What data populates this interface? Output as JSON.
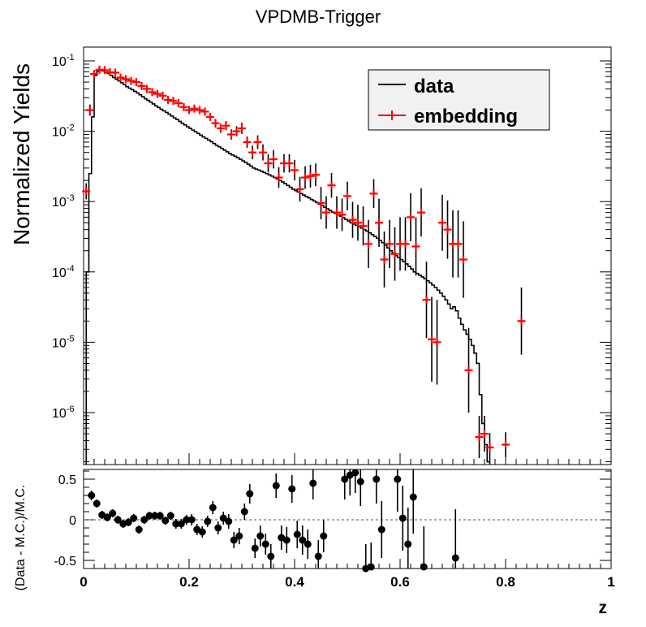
{
  "chart_data": [
    {
      "type": "line",
      "panel": "top",
      "title": "VPDMB-Trigger",
      "ylabel": "Normalized Yields",
      "xlabel": "",
      "xlim": [
        0,
        1
      ],
      "yscale": "log",
      "ylim": [
        2.5e-07,
        0.15
      ],
      "y_ticks": [
        1e-06,
        1e-05,
        0.0001,
        0.001,
        0.01,
        0.1
      ],
      "y_tick_labels": [
        {
          "base": "10",
          "exp": "-6"
        },
        {
          "base": "10",
          "exp": "-5"
        },
        {
          "base": "10",
          "exp": "-4"
        },
        {
          "base": "10",
          "exp": "-3"
        },
        {
          "base": "10",
          "exp": "-2"
        },
        {
          "base": "10",
          "exp": "-1"
        }
      ],
      "legend_position": "top-right",
      "series": [
        {
          "name": "data",
          "style": "step",
          "color": "#000000",
          "bin_width": 0.005,
          "x_start": 0.005,
          "values": [
            0.0001,
            0.0025,
            0.016,
            0.062,
            0.071,
            0.073,
            0.072,
            0.069,
            0.066,
            0.062,
            0.058,
            0.055,
            0.052,
            0.049,
            0.046,
            0.043,
            0.041,
            0.039,
            0.037,
            0.035,
            0.033,
            0.031,
            0.029,
            0.0275,
            0.026,
            0.0245,
            0.023,
            0.0218,
            0.0205,
            0.0195,
            0.0185,
            0.0175,
            0.0165,
            0.0155,
            0.0147,
            0.0138,
            0.013,
            0.0123,
            0.0116,
            0.011,
            0.0104,
            0.0098,
            0.0093,
            0.0088,
            0.0083,
            0.0079,
            0.0075,
            0.0071,
            0.0067,
            0.0063,
            0.006,
            0.0057,
            0.0054,
            0.0051,
            0.0048,
            0.0046,
            0.0044,
            0.0042,
            0.004,
            0.0038,
            0.0036,
            0.0034,
            0.0032,
            0.003,
            0.0029,
            0.0028,
            0.0027,
            0.0026,
            0.0025,
            0.0024,
            0.0023,
            0.0022,
            0.0021,
            0.002,
            0.0019,
            0.0018,
            0.0017,
            0.0016,
            0.0015,
            0.00143,
            0.00137,
            0.0013,
            0.00124,
            0.00118,
            0.00113,
            0.00107,
            0.00102,
            0.00097,
            0.00092,
            0.00088,
            0.00083,
            0.00079,
            0.00075,
            0.00071,
            0.00068,
            0.00065,
            0.00062,
            0.00059,
            0.00056,
            0.00053,
            0.0005,
            0.00048,
            0.00046,
            0.00044,
            0.00042,
            0.0004,
            0.00038,
            0.00036,
            0.00034,
            0.00032,
            0.0003,
            0.00028,
            0.00026,
            0.00024,
            0.00022,
            0.0002,
            0.000185,
            0.00017,
            0.00016,
            0.00015,
            0.00014,
            0.00013,
            0.00012,
            0.00011,
            0.0001,
            9.5e-05,
            9e-05,
            8.5e-05,
            8e-05,
            7.5e-05,
            7e-05,
            6.5e-05,
            6e-05,
            5.5e-05,
            5e-05,
            4.5e-05,
            4e-05,
            3.5e-05,
            3e-05,
            3.2e-05,
            2.8e-05,
            2.2e-05,
            1.8e-05,
            1.5e-05,
            1.3e-05,
            1.1e-05,
            9e-06,
            7e-06,
            5e-06,
            1.8e-06,
            7e-07,
            3.5e-07,
            2e-07
          ]
        },
        {
          "name": "embedding",
          "style": "markers-errors",
          "color": "#ff0000",
          "x": [
            0.005,
            0.012,
            0.02,
            0.03,
            0.04,
            0.05,
            0.06,
            0.07,
            0.08,
            0.09,
            0.1,
            0.11,
            0.12,
            0.13,
            0.14,
            0.15,
            0.16,
            0.17,
            0.18,
            0.19,
            0.2,
            0.21,
            0.22,
            0.23,
            0.24,
            0.25,
            0.26,
            0.27,
            0.28,
            0.29,
            0.3,
            0.31,
            0.32,
            0.33,
            0.34,
            0.35,
            0.36,
            0.37,
            0.38,
            0.39,
            0.4,
            0.41,
            0.42,
            0.43,
            0.44,
            0.45,
            0.46,
            0.47,
            0.48,
            0.49,
            0.5,
            0.51,
            0.52,
            0.53,
            0.54,
            0.55,
            0.56,
            0.57,
            0.58,
            0.59,
            0.6,
            0.61,
            0.62,
            0.63,
            0.64,
            0.65,
            0.66,
            0.67,
            0.68,
            0.69,
            0.7,
            0.71,
            0.72,
            0.73,
            0.75,
            0.76,
            0.77,
            0.8,
            0.83
          ],
          "y": [
            0.0014,
            0.02,
            0.065,
            0.075,
            0.074,
            0.069,
            0.068,
            0.058,
            0.055,
            0.052,
            0.05,
            0.044,
            0.04,
            0.036,
            0.034,
            0.032,
            0.028,
            0.027,
            0.025,
            0.022,
            0.02,
            0.021,
            0.02,
            0.019,
            0.016,
            0.013,
            0.011,
            0.012,
            0.009,
            0.01,
            0.011,
            0.007,
            0.005,
            0.007,
            0.005,
            0.0035,
            0.004,
            0.0022,
            0.0035,
            0.0035,
            0.0028,
            0.0015,
            0.0022,
            0.0023,
            0.0024,
            0.00095,
            0.0007,
            0.0017,
            0.0007,
            0.00065,
            0.0012,
            0.00055,
            0.0005,
            0.00045,
            0.00025,
            0.0013,
            0.0005,
            0.00015,
            0.00025,
            0.00018,
            0.00025,
            0.00025,
            0.0006,
            0.00023,
            0.0007,
            4e-05,
            1.1e-05,
            1e-05,
            0.0005,
            0.0004,
            0.00025,
            0.00025,
            0.00015,
            4e-06,
            4.5e-07,
            5e-07,
            3.2e-07,
            3.5e-07,
            2e-05
          ],
          "err_factor": [
            1.3,
            1.2,
            1.1,
            1.08,
            1.06,
            1.06,
            1.06,
            1.07,
            1.07,
            1.07,
            1.07,
            1.08,
            1.08,
            1.08,
            1.08,
            1.1,
            1.1,
            1.1,
            1.1,
            1.1,
            1.12,
            1.12,
            1.12,
            1.12,
            1.14,
            1.15,
            1.16,
            1.16,
            1.18,
            1.18,
            1.2,
            1.2,
            1.25,
            1.25,
            1.3,
            1.35,
            1.35,
            1.4,
            1.35,
            1.35,
            1.4,
            1.5,
            1.45,
            1.45,
            1.45,
            1.7,
            1.7,
            1.5,
            1.7,
            1.7,
            1.6,
            1.8,
            1.8,
            1.9,
            2.2,
            1.6,
            2.2,
            2.5,
            2.2,
            2.4,
            2.4,
            2.4,
            2.2,
            2.6,
            2.2,
            3.5,
            4,
            4,
            2.5,
            2.6,
            3,
            3,
            3.5,
            4,
            2,
            1.8,
            1.6,
            1.5,
            3
          ]
        }
      ],
      "legend": [
        {
          "label": "data",
          "kind": "line"
        },
        {
          "label": "embedding",
          "kind": "marker"
        }
      ]
    },
    {
      "type": "scatter",
      "panel": "bottom",
      "xlabel": "z",
      "ylabel": "(Data - M.C.)/M.C.",
      "xlim": [
        0,
        1
      ],
      "ylim": [
        -0.6,
        0.6
      ],
      "x_ticks": [
        0,
        0.2,
        0.4,
        0.6,
        0.8,
        1
      ],
      "x_tick_labels": [
        "0",
        "0.2",
        "0.4",
        "0.6",
        "0.8",
        "1"
      ],
      "y_ticks": [
        -0.5,
        0,
        0.5
      ],
      "y_tick_labels": [
        "-0.5",
        "0",
        "0.5"
      ],
      "reference_line": 0,
      "series": [
        {
          "name": "",
          "color": "#000000",
          "x": [
            0.015,
            0.025,
            0.035,
            0.045,
            0.055,
            0.065,
            0.075,
            0.085,
            0.095,
            0.105,
            0.115,
            0.125,
            0.135,
            0.145,
            0.155,
            0.165,
            0.175,
            0.185,
            0.195,
            0.205,
            0.215,
            0.225,
            0.235,
            0.245,
            0.255,
            0.265,
            0.275,
            0.285,
            0.295,
            0.305,
            0.315,
            0.325,
            0.335,
            0.345,
            0.355,
            0.365,
            0.375,
            0.385,
            0.395,
            0.405,
            0.415,
            0.425,
            0.435,
            0.445,
            0.455,
            0.495,
            0.505,
            0.515,
            0.525,
            0.535,
            0.545,
            0.555,
            0.565,
            0.595,
            0.605,
            0.615,
            0.625,
            0.645,
            0.705
          ],
          "y": [
            0.3,
            0.2,
            0.06,
            0.03,
            0.08,
            0,
            -0.05,
            -0.03,
            0.02,
            -0.12,
            0,
            0.05,
            0.05,
            0.05,
            -0.01,
            0.05,
            -0.05,
            -0.05,
            0,
            0,
            -0.12,
            -0.15,
            -0.02,
            0.15,
            -0.1,
            0.02,
            -0.02,
            -0.25,
            -0.2,
            0.1,
            0.32,
            -0.35,
            -0.2,
            -0.3,
            -0.45,
            0.42,
            -0.22,
            -0.25,
            0.38,
            -0.18,
            -0.25,
            -0.3,
            0.45,
            -0.45,
            -0.2,
            0.5,
            0.55,
            0.58,
            0.47,
            -0.6,
            -0.58,
            0.5,
            -0.12,
            0.5,
            0.02,
            -0.3,
            0.28,
            -0.58,
            -0.47
          ],
          "err": [
            0.06,
            0.05,
            0.05,
            0.05,
            0.05,
            0.05,
            0.05,
            0.05,
            0.05,
            0.05,
            0.05,
            0.05,
            0.05,
            0.05,
            0.05,
            0.05,
            0.06,
            0.06,
            0.06,
            0.07,
            0.07,
            0.07,
            0.07,
            0.08,
            0.08,
            0.08,
            0.09,
            0.1,
            0.1,
            0.1,
            0.12,
            0.12,
            0.13,
            0.13,
            0.15,
            0.15,
            0.15,
            0.16,
            0.17,
            0.17,
            0.18,
            0.18,
            0.2,
            0.2,
            0.2,
            0.25,
            0.25,
            0.25,
            0.3,
            0.3,
            0.3,
            0.3,
            0.35,
            0.4,
            0.4,
            0.45,
            0.45,
            0.5,
            0.6
          ]
        }
      ]
    }
  ]
}
